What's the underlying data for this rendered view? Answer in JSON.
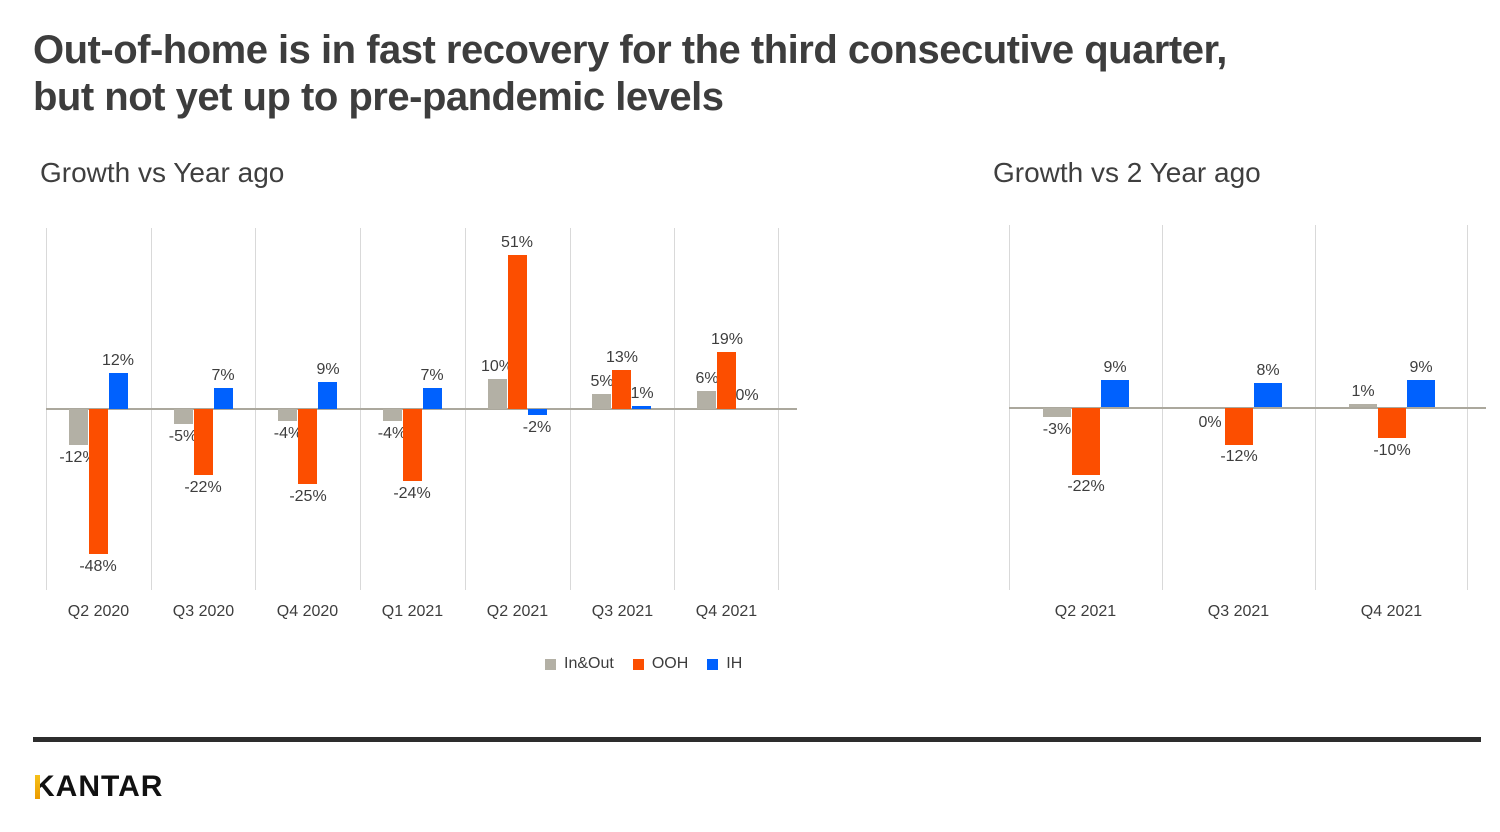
{
  "header": {
    "line1": "Out-of-home is in fast recovery for the third consecutive quarter,",
    "line2": "but not yet up to pre-pandemic levels"
  },
  "colors": {
    "inout": "#b3b0a5",
    "ooh": "#fc4e00",
    "ih": "#0061fe",
    "axis": "#aba89d",
    "gridline": "#d9d9d9",
    "divider": "#2d2d2d",
    "kantar_gold": "#efa70a",
    "text": "#3d3d3d"
  },
  "chart_data": [
    {
      "id": "yoy",
      "type": "bar",
      "title": "Growth vs Year ago",
      "categories": [
        "Q2 2020",
        "Q3 2020",
        "Q4 2020",
        "Q1 2021",
        "Q2 2021",
        "Q3 2021",
        "Q4 2021"
      ],
      "series": [
        {
          "name": "In&Out",
          "color": "#b3b0a5",
          "values": [
            -12,
            -5,
            -4,
            -4,
            10,
            5,
            6
          ],
          "labels": [
            "-12%",
            "-5%",
            "-4%",
            "-4%",
            "10%",
            "5%",
            "6%"
          ]
        },
        {
          "name": "OOH",
          "color": "#fc4e00",
          "values": [
            -48,
            -22,
            -25,
            -24,
            51,
            13,
            19
          ],
          "labels": [
            "-48%",
            "-22%",
            "-25%",
            "-24%",
            "51%",
            "13%",
            "19%"
          ]
        },
        {
          "name": "IH",
          "color": "#0061fe",
          "values": [
            12,
            7,
            9,
            7,
            -2,
            1,
            0
          ],
          "labels": [
            "12%",
            "7%",
            "9%",
            "7%",
            "-2%",
            "1%",
            "0%"
          ]
        }
      ],
      "ylim": [
        -60,
        60
      ],
      "grid": "vertical-category-boundaries",
      "legend_position": "bottom"
    },
    {
      "id": "yo2y",
      "type": "bar",
      "title": "Growth vs 2 Year ago",
      "categories": [
        "Q2 2021",
        "Q3 2021",
        "Q4 2021"
      ],
      "series": [
        {
          "name": "In&Out",
          "color": "#b3b0a5",
          "values": [
            -3,
            0,
            1
          ],
          "labels": [
            "-3%",
            "0%",
            "1%"
          ]
        },
        {
          "name": "OOH",
          "color": "#fc4e00",
          "values": [
            -22,
            -12,
            -10
          ],
          "labels": [
            "-22%",
            "-12%",
            "-10%"
          ]
        },
        {
          "name": "IH",
          "color": "#0061fe",
          "values": [
            9,
            8,
            9
          ],
          "labels": [
            "9%",
            "8%",
            "9%"
          ]
        }
      ],
      "ylim": [
        -60,
        60
      ],
      "grid": "vertical-category-boundaries",
      "legend_position": "none"
    }
  ],
  "legend": {
    "items": [
      {
        "label": "In&Out",
        "color": "#b3b0a5"
      },
      {
        "label": "OOH",
        "color": "#fc4e00"
      },
      {
        "label": "IH",
        "color": "#0061fe"
      }
    ]
  },
  "footer": {
    "logo": "KANTAR"
  }
}
